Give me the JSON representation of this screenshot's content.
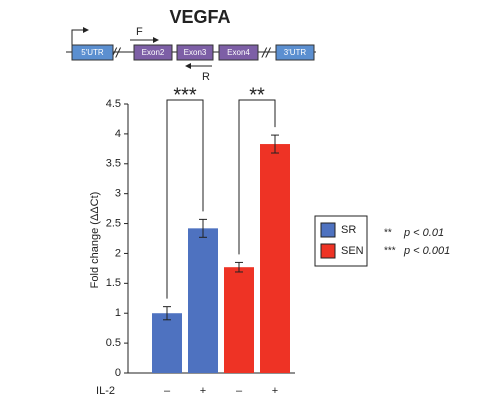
{
  "chart_data": {
    "type": "bar",
    "title": "VEGFA",
    "ylabel": "Fold change (ΔΔCt)",
    "xlabel": "IL-2",
    "categories": [
      "–",
      "+",
      "–",
      "+"
    ],
    "series": [
      {
        "name": "SR",
        "color": "#4e72c0",
        "values": [
          1.0,
          2.42,
          null,
          null
        ],
        "errors": [
          0.11,
          0.15,
          null,
          null
        ]
      },
      {
        "name": "SEN",
        "color": "#ee3325",
        "values": [
          null,
          null,
          1.77,
          3.83
        ],
        "errors": [
          null,
          null,
          0.08,
          0.15
        ]
      }
    ],
    "ylim": [
      0,
      4.5
    ],
    "yticks": [
      0,
      0.5,
      1,
      1.5,
      2,
      2.5,
      3,
      3.5,
      4,
      4.5
    ],
    "annotations": [
      "***",
      "**"
    ],
    "notes": [
      "**",
      "p < 0.01",
      "***",
      "p < 0.001"
    ]
  },
  "gene_diagram": {
    "boxes": [
      "5'UTR",
      "Exon2",
      "Exon3",
      "Exon4",
      "3'UTR"
    ],
    "forward_primer": "F",
    "reverse_primer": "R"
  }
}
